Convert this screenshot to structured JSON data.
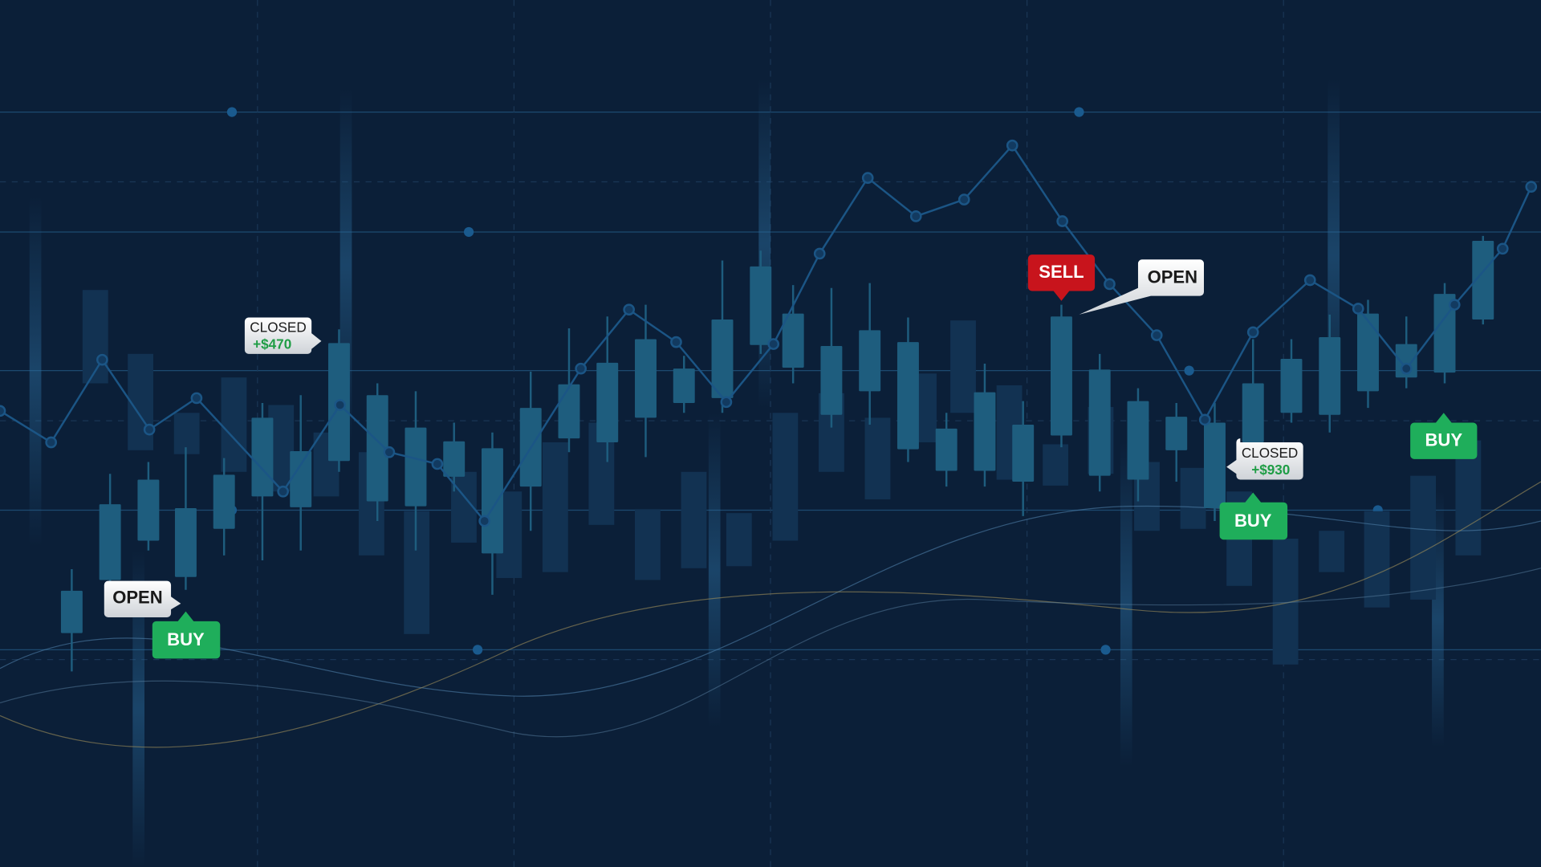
{
  "markers": [
    {
      "status": "CLOSED",
      "profit": "+$470"
    },
    {
      "status": "OPEN"
    },
    {
      "action": "BUY"
    },
    {
      "action": "SELL"
    },
    {
      "status": "OPEN"
    },
    {
      "status": "CLOSED",
      "profit": "+$930"
    },
    {
      "action": "BUY"
    },
    {
      "action": "BUY"
    }
  ]
}
